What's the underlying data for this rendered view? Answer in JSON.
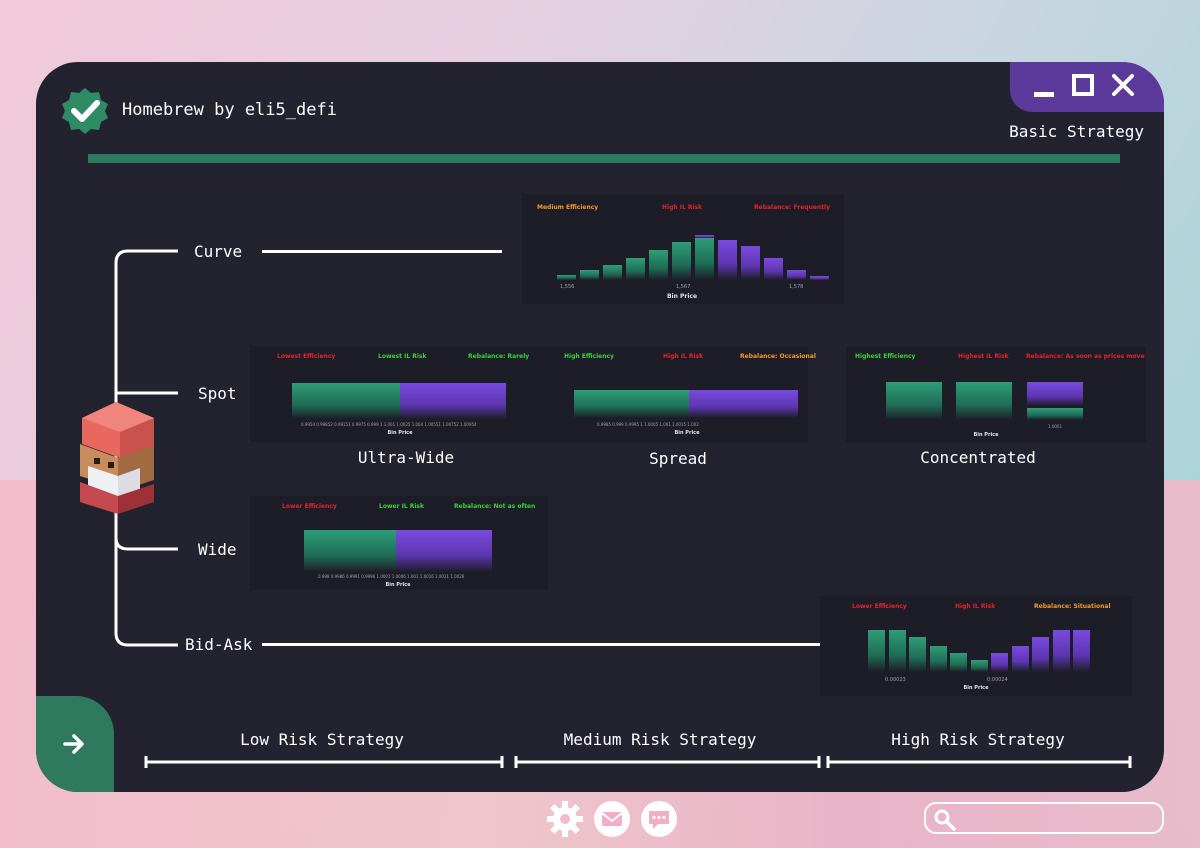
{
  "app": {
    "title": "Homebrew by eli5_defi",
    "subtitle": "Basic Strategy"
  },
  "tree": {
    "curve": "Curve",
    "spot": "Spot",
    "wide": "Wide",
    "bid_ask": "Bid-Ask"
  },
  "spot_types": {
    "ultra_wide": "Ultra-Wide",
    "spread": "Spread",
    "concentrated": "Concentrated"
  },
  "risk_scale": {
    "low": "Low Risk Strategy",
    "medium": "Medium Risk Strategy",
    "high": "High Risk Strategy"
  },
  "colors": {
    "orange": "#f29a2e",
    "red": "#e0252d",
    "green": "#38d23a"
  },
  "panels": {
    "curve": {
      "efficiency": "Medium Efficiency",
      "risk": "High IL Risk",
      "rebalance": "Rebalance: Frequently",
      "ticks": [
        "1,556",
        "1,567",
        "1,578"
      ],
      "axis": "Bin Price"
    },
    "ultra_wide": {
      "efficiency": "Lowest Efficiency",
      "risk": "Lowest IL Risk",
      "rebalance": "Rebalance: Rarely",
      "ticks": "0.9954  0.99852  0.99151  0.9975  0.999  1  1.001  1.0025  1.004  1.00551  1.00752  1.00954",
      "axis": "Bin Price"
    },
    "spread": {
      "efficiency": "High Efficiency",
      "risk": "High IL Risk",
      "rebalance": "Rebalance: Occasional",
      "ticks": "0.9985      0.999      0.9995      1      1.0005      1.001      1.0015      1.002",
      "axis": "Bin Price"
    },
    "concentrated": {
      "efficiency": "Highest Efficiency",
      "risk": "Highest IL Risk",
      "rebalance": "Rebalance: As soon as prices move",
      "ticks": "1.0001",
      "axis": "Bin Price"
    },
    "wide": {
      "efficiency": "Lower Efficiency",
      "risk": "Lower IL Risk",
      "rebalance": "Rebalance: Not as often",
      "ticks": "0.998  0.9986  0.9991  0.9996  1.0001  1.0006  1.001  1.0016  1.0021  1.0026",
      "axis": "Bin Price"
    },
    "bid_ask": {
      "efficiency": "Lower Efficiency",
      "risk": "High IL Risk",
      "rebalance": "Rebalance: Situational",
      "ticks": [
        "0.00023",
        "0.00024"
      ],
      "axis": "Bin Price"
    }
  },
  "chart_data": [
    {
      "type": "bar",
      "title": "Curve",
      "xlabel": "Bin Price",
      "series": [
        {
          "name": "green",
          "values": [
            5,
            10,
            15,
            22,
            30,
            38,
            42,
            0,
            0,
            0,
            0,
            0
          ]
        },
        {
          "name": "purple",
          "values": [
            0,
            0,
            0,
            0,
            0,
            0,
            3,
            40,
            34,
            22,
            10,
            4
          ]
        }
      ]
    },
    {
      "type": "bar",
      "title": "Ultra-Wide",
      "xlabel": "Bin Price",
      "series": [
        {
          "name": "green",
          "values": [
            1
          ]
        },
        {
          "name": "purple",
          "values": [
            1
          ]
        }
      ]
    },
    {
      "type": "bar",
      "title": "Spread",
      "xlabel": "Bin Price",
      "series": [
        {
          "name": "green",
          "values": [
            1
          ]
        },
        {
          "name": "purple",
          "values": [
            1
          ]
        }
      ]
    },
    {
      "type": "bar",
      "title": "Concentrated",
      "xlabel": "Bin Price",
      "values": [
        1,
        1,
        1
      ]
    },
    {
      "type": "bar",
      "title": "Wide",
      "xlabel": "Bin Price",
      "series": [
        {
          "name": "green",
          "values": [
            1
          ]
        },
        {
          "name": "purple",
          "values": [
            1
          ]
        }
      ]
    },
    {
      "type": "bar",
      "title": "Bid-Ask",
      "xlabel": "Bin Price",
      "series": [
        {
          "name": "green",
          "values": [
            40,
            40,
            33,
            25,
            18,
            11,
            0,
            0,
            0,
            0,
            0
          ]
        },
        {
          "name": "purple",
          "values": [
            0,
            0,
            0,
            0,
            0,
            0,
            18,
            25,
            33,
            40,
            40
          ]
        }
      ]
    }
  ],
  "footer": {
    "search_placeholder": ""
  }
}
